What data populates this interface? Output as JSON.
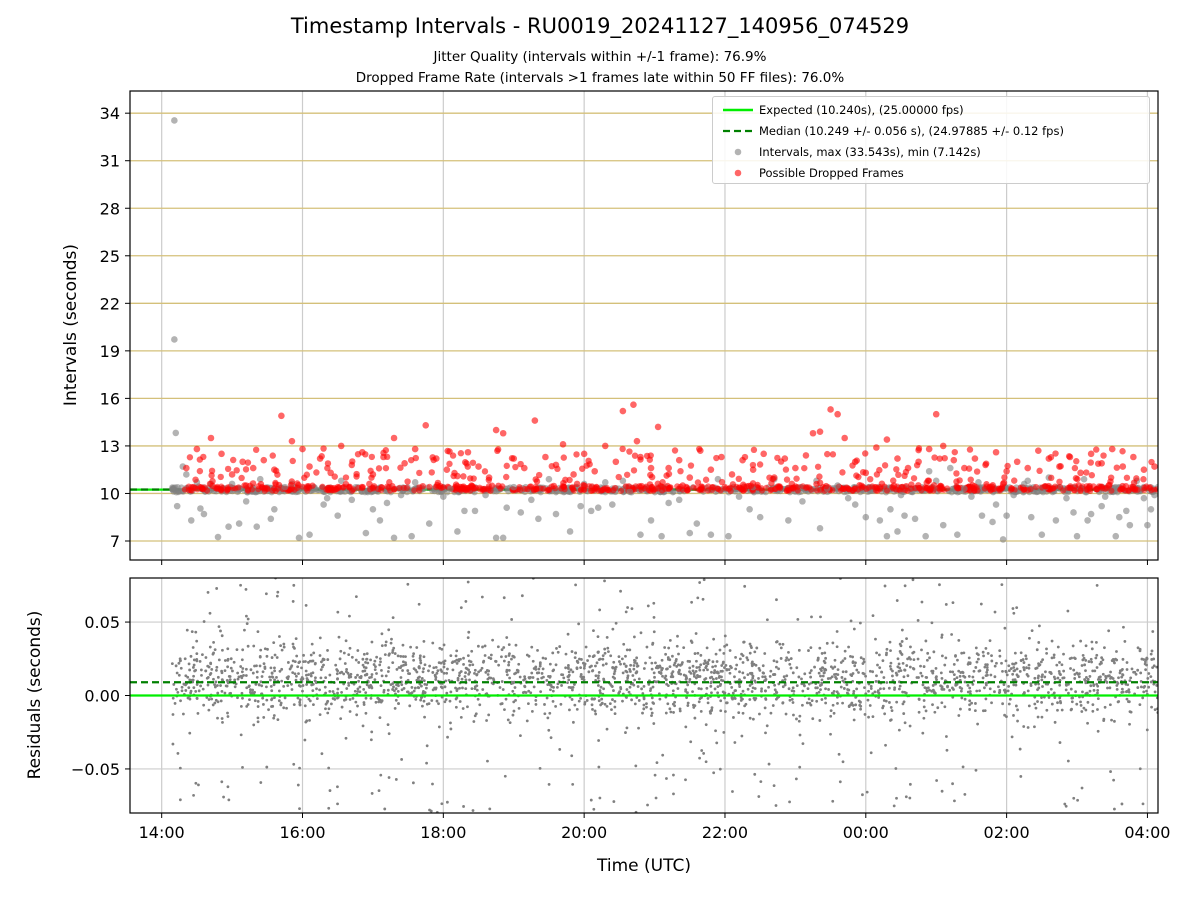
{
  "title": "Timestamp Intervals - RU0019_20241127_140956_074529",
  "subtitle_1": "Jitter Quality (intervals within +/-1 frame): 76.9%",
  "subtitle_2": "Dropped Frame Rate (intervals >1 frames late within 50 FF files): 76.0%",
  "colors": {
    "expected": "#00ee00",
    "median": "#008000",
    "intervals": "#808080",
    "dropped": "#ff0000",
    "hgrid": "#d4c07a",
    "vgrid": "#cccccc"
  },
  "chart_data": [
    {
      "type": "scatter",
      "ylabel": "Intervals (seconds)",
      "xlabel": "",
      "x_unit": "hours since 14:00 UTC",
      "xlim": [
        -0.45,
        14.15
      ],
      "ylim": [
        5.8,
        35.4
      ],
      "yticks": [
        7,
        10,
        13,
        16,
        19,
        22,
        25,
        28,
        31,
        34
      ],
      "ytick_labels": [
        "7",
        "10",
        "13",
        "16",
        "19",
        "22",
        "25",
        "28",
        "31",
        "34"
      ],
      "grid": true,
      "legend_position": "top-right",
      "legend": [
        {
          "label": "Expected (10.240s), (25.00000 fps)",
          "style": "solid-line",
          "color": "#00ee00"
        },
        {
          "label": "Median (10.249 +/- 0.056 s), (24.97885 +/- 0.12 fps)",
          "style": "dashed-line",
          "color": "#008000"
        },
        {
          "label": "Intervals, max (33.543s), min (7.142s)",
          "style": "marker",
          "color": "#808080"
        },
        {
          "label": "Possible Dropped Frames",
          "style": "marker",
          "color": "#ff0000"
        }
      ],
      "reference_lines": [
        {
          "name": "Expected",
          "y": 10.24,
          "color": "#00ee00",
          "style": "solid"
        },
        {
          "name": "Median",
          "y": 10.249,
          "color": "#008000",
          "style": "dashed"
        }
      ],
      "series": [
        {
          "name": "Intervals, max (33.543s), min (7.142s)",
          "color": "#808080",
          "points": [
            [
              0.18,
              33.54
            ],
            [
              0.18,
              19.72
            ],
            [
              0.2,
              13.82
            ],
            [
              0.3,
              11.7
            ],
            [
              0.22,
              9.2
            ],
            [
              0.42,
              8.3
            ],
            [
              0.55,
              9.05
            ],
            [
              0.8,
              7.25
            ],
            [
              0.95,
              7.9
            ],
            [
              1.1,
              8.1
            ],
            [
              1.2,
              9.5
            ],
            [
              1.35,
              7.9
            ],
            [
              1.6,
              9.0
            ],
            [
              1.85,
              10.6
            ],
            [
              1.95,
              7.2
            ],
            [
              2.1,
              7.4
            ],
            [
              2.3,
              9.3
            ],
            [
              2.5,
              8.6
            ],
            [
              2.7,
              9.6
            ],
            [
              2.9,
              7.5
            ],
            [
              3.1,
              8.3
            ],
            [
              3.3,
              7.2
            ],
            [
              3.4,
              9.9
            ],
            [
              3.55,
              7.3
            ],
            [
              3.8,
              8.1
            ],
            [
              4.0,
              9.8
            ],
            [
              4.1,
              10.3
            ],
            [
              4.2,
              7.6
            ],
            [
              4.45,
              8.9
            ],
            [
              4.6,
              9.9
            ],
            [
              4.75,
              7.2
            ],
            [
              4.85,
              7.2
            ],
            [
              5.1,
              8.8
            ],
            [
              5.25,
              9.6
            ],
            [
              5.35,
              8.4
            ],
            [
              5.6,
              8.7
            ],
            [
              5.8,
              7.6
            ],
            [
              6.0,
              10.6
            ],
            [
              6.2,
              9.1
            ],
            [
              6.4,
              9.3
            ],
            [
              6.55,
              10.8
            ],
            [
              6.65,
              10.1
            ],
            [
              6.8,
              7.4
            ],
            [
              6.95,
              8.3
            ],
            [
              7.1,
              7.3
            ],
            [
              7.35,
              9.6
            ],
            [
              7.5,
              7.5
            ],
            [
              7.6,
              8.1
            ],
            [
              7.8,
              7.4
            ],
            [
              8.05,
              7.3
            ],
            [
              8.2,
              9.8
            ],
            [
              8.5,
              8.5
            ],
            [
              8.7,
              10.9
            ],
            [
              8.9,
              8.3
            ],
            [
              9.1,
              9.5
            ],
            [
              9.35,
              7.8
            ],
            [
              9.6,
              10.5
            ],
            [
              9.75,
              9.7
            ],
            [
              10.0,
              8.5
            ],
            [
              10.2,
              8.3
            ],
            [
              10.3,
              7.3
            ],
            [
              10.45,
              7.6
            ],
            [
              10.55,
              8.6
            ],
            [
              10.7,
              8.4
            ],
            [
              10.85,
              7.3
            ],
            [
              11.1,
              8.0
            ],
            [
              11.3,
              7.4
            ],
            [
              11.5,
              9.8
            ],
            [
              11.65,
              8.6
            ],
            [
              11.8,
              8.2
            ],
            [
              11.95,
              7.1
            ],
            [
              12.1,
              9.9
            ],
            [
              12.25,
              10.6
            ],
            [
              12.5,
              7.4
            ],
            [
              12.7,
              8.3
            ],
            [
              12.85,
              9.7
            ],
            [
              13.0,
              7.3
            ],
            [
              13.2,
              8.7
            ],
            [
              13.35,
              9.2
            ],
            [
              13.55,
              7.3
            ],
            [
              13.7,
              8.9
            ],
            [
              13.85,
              10.8
            ],
            [
              14.0,
              8.0
            ],
            [
              10.35,
              9.0
            ],
            [
              10.5,
              9.9
            ],
            [
              10.9,
              11.4
            ],
            [
              11.0,
              10.8
            ],
            [
              11.2,
              11.6
            ],
            [
              11.4,
              10.3
            ],
            [
              11.6,
              10.7
            ],
            [
              11.85,
              9.3
            ],
            [
              12.0,
              8.6
            ],
            [
              12.35,
              8.5
            ],
            [
              12.55,
              10.4
            ],
            [
              12.6,
              11.0
            ],
            [
              12.95,
              8.8
            ],
            [
              13.15,
              8.3
            ],
            [
              13.4,
              9.8
            ],
            [
              13.6,
              8.5
            ],
            [
              13.75,
              8.0
            ],
            [
              13.95,
              9.7
            ],
            [
              14.1,
              9.9
            ],
            [
              14.05,
              9.0
            ],
            [
              1.0,
              10.6
            ],
            [
              1.4,
              10.9
            ],
            [
              2.55,
              10.8
            ],
            [
              3.6,
              10.7
            ],
            [
              5.5,
              10.9
            ],
            [
              6.3,
              10.7
            ],
            [
              7.9,
              10.9
            ],
            [
              9.3,
              10.8
            ],
            [
              12.3,
              10.8
            ],
            [
              13.1,
              10.9
            ],
            [
              0.35,
              11.2
            ],
            [
              0.5,
              10.7
            ],
            [
              0.7,
              10.6
            ],
            [
              1.75,
              10.4
            ],
            [
              3.0,
              9.0
            ],
            [
              4.3,
              8.9
            ],
            [
              4.9,
              9.1
            ],
            [
              5.95,
              9.2
            ],
            [
              7.2,
              9.4
            ],
            [
              8.35,
              9.0
            ],
            [
              9.85,
              9.3
            ],
            [
              0.6,
              8.7
            ],
            [
              1.55,
              8.4
            ],
            [
              2.35,
              9.7
            ],
            [
              3.2,
              9.4
            ],
            [
              5.0,
              10.4
            ],
            [
              6.1,
              8.9
            ],
            [
              8.4,
              10.4
            ],
            [
              9.45,
              10.3
            ]
          ]
        },
        {
          "name": "Possible Dropped Frames",
          "color": "#ff0000",
          "points": [
            [
              0.35,
              11.6
            ],
            [
              0.5,
              12.8
            ],
            [
              0.7,
              13.5
            ],
            [
              0.85,
              12.5
            ],
            [
              1.0,
              11.2
            ],
            [
              1.15,
              12.0
            ],
            [
              1.3,
              11.6
            ],
            [
              1.45,
              12.1
            ],
            [
              1.6,
              11.5
            ],
            [
              1.7,
              14.9
            ],
            [
              1.85,
              13.3
            ],
            [
              2.0,
              12.8
            ],
            [
              2.1,
              11.7
            ],
            [
              2.25,
              12.2
            ],
            [
              2.4,
              11.3
            ],
            [
              2.55,
              13.0
            ],
            [
              2.7,
              11.8
            ],
            [
              2.85,
              12.6
            ],
            [
              3.0,
              11.2
            ],
            [
              3.15,
              12.3
            ],
            [
              3.3,
              13.5
            ],
            [
              3.45,
              11.9
            ],
            [
              3.6,
              12.8
            ],
            [
              3.75,
              14.3
            ],
            [
              3.9,
              12.2
            ],
            [
              4.05,
              11.5
            ],
            [
              4.2,
              11.1
            ],
            [
              4.35,
              12.6
            ],
            [
              4.5,
              11.7
            ],
            [
              4.65,
              11.0
            ],
            [
              4.75,
              14.0
            ],
            [
              4.85,
              13.8
            ],
            [
              5.0,
              12.2
            ],
            [
              5.15,
              11.6
            ],
            [
              5.3,
              14.6
            ],
            [
              5.45,
              12.3
            ],
            [
              5.6,
              11.8
            ],
            [
              5.7,
              13.1
            ],
            [
              5.85,
              11.2
            ],
            [
              6.0,
              12.5
            ],
            [
              6.15,
              11.4
            ],
            [
              6.3,
              13.0
            ],
            [
              6.45,
              12.0
            ],
            [
              6.55,
              15.2
            ],
            [
              6.7,
              15.6
            ],
            [
              6.75,
              13.3
            ],
            [
              6.8,
              12.3
            ],
            [
              6.95,
              11.6
            ],
            [
              7.05,
              14.2
            ],
            [
              7.2,
              11.6
            ],
            [
              7.35,
              12.1
            ],
            [
              7.5,
              11.0
            ],
            [
              7.65,
              12.7
            ],
            [
              7.8,
              11.5
            ],
            [
              7.95,
              12.3
            ],
            [
              8.1,
              11.2
            ],
            [
              8.25,
              12.1
            ],
            [
              8.4,
              11.5
            ],
            [
              8.55,
              12.5
            ],
            [
              8.7,
              11.0
            ],
            [
              8.85,
              12.2
            ],
            [
              9.0,
              11.6
            ],
            [
              9.15,
              12.4
            ],
            [
              9.25,
              13.8
            ],
            [
              9.35,
              13.9
            ],
            [
              9.5,
              15.3
            ],
            [
              9.6,
              15.0
            ],
            [
              9.7,
              13.5
            ],
            [
              9.85,
              12.0
            ],
            [
              10.0,
              11.3
            ],
            [
              10.15,
              12.9
            ],
            [
              10.3,
              13.4
            ],
            [
              10.45,
              12.2
            ],
            [
              10.6,
              11.6
            ],
            [
              10.75,
              12.0
            ],
            [
              10.9,
              12.8
            ],
            [
              11.0,
              15.0
            ],
            [
              11.1,
              13.0
            ],
            [
              11.25,
              12.1
            ],
            [
              11.4,
              11.6
            ],
            [
              11.55,
              12.2
            ],
            [
              11.7,
              11.8
            ],
            [
              11.85,
              12.6
            ],
            [
              12.0,
              11.4
            ],
            [
              12.15,
              12.0
            ],
            [
              12.3,
              11.6
            ],
            [
              12.45,
              12.7
            ],
            [
              12.6,
              12.2
            ],
            [
              12.75,
              11.7
            ],
            [
              12.9,
              12.3
            ],
            [
              13.05,
              11.3
            ],
            [
              13.2,
              12.5
            ],
            [
              13.35,
              11.9
            ],
            [
              13.5,
              12.8
            ],
            [
              13.65,
              11.7
            ],
            [
              13.8,
              12.3
            ],
            [
              13.95,
              11.5
            ],
            [
              14.1,
              11.7
            ],
            [
              0.45,
              10.4
            ],
            [
              1.2,
              10.5
            ],
            [
              2.95,
              10.6
            ],
            [
              4.4,
              10.5
            ],
            [
              5.9,
              10.6
            ],
            [
              7.4,
              10.5
            ],
            [
              8.95,
              10.6
            ],
            [
              10.4,
              10.5
            ],
            [
              11.95,
              10.6
            ],
            [
              13.45,
              10.5
            ]
          ]
        }
      ]
    },
    {
      "type": "scatter",
      "ylabel": "Residuals (seconds)",
      "xlabel": "Time (UTC)",
      "x_unit": "hours since 14:00 UTC",
      "xlim": [
        -0.45,
        14.15
      ],
      "ylim": [
        -0.08,
        0.08
      ],
      "yticks": [
        -0.05,
        0.0,
        0.05
      ],
      "ytick_labels": [
        "−0.05",
        "0.00",
        "0.05"
      ],
      "xticks": [
        0,
        2,
        4,
        6,
        8,
        10,
        12,
        14
      ],
      "xtick_labels": [
        "14:00",
        "16:00",
        "18:00",
        "20:00",
        "22:00",
        "00:00",
        "02:00",
        "04:00"
      ],
      "grid": true,
      "reference_lines": [
        {
          "name": "Expected",
          "y": 0.0,
          "color": "#00ee00",
          "style": "solid"
        },
        {
          "name": "Median",
          "y": 0.009,
          "color": "#008000",
          "style": "dashed"
        }
      ],
      "series": [
        {
          "name": "Residuals",
          "color": "#808080",
          "description_points": "dense cloud, ~3000 points between x=0.15 and x=14.15, concentrated near y=0.01 with spread +/-0.08"
        }
      ]
    }
  ]
}
